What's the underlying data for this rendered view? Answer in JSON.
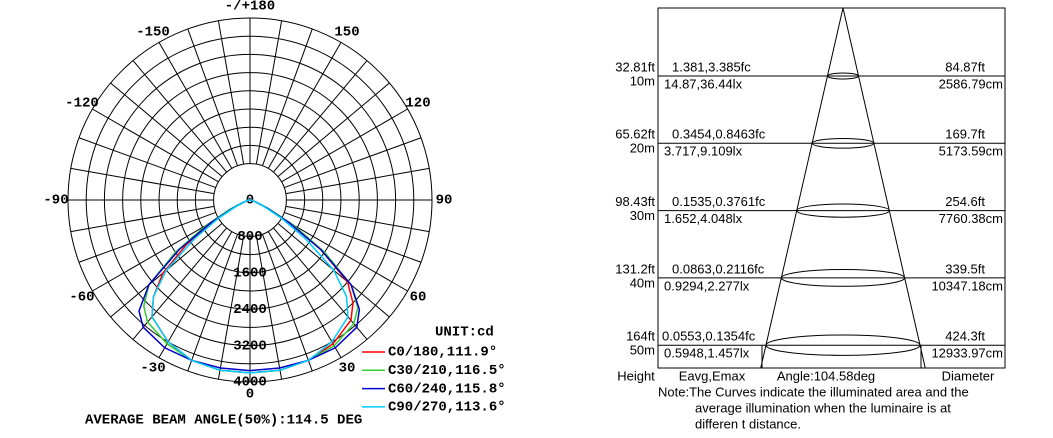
{
  "polar": {
    "angleticks": [
      {
        "value": 180,
        "label": "-/+180"
      },
      150,
      120,
      90,
      60,
      30,
      0,
      -30,
      -60,
      -90,
      -120,
      -150
    ],
    "rlim": [
      0,
      4000
    ],
    "rticks": [
      0,
      800,
      1600,
      2400,
      3200,
      4000
    ],
    "angles": [
      -90,
      -80,
      -70,
      -65,
      -60,
      -55,
      -50,
      -45,
      -40,
      -30,
      -20,
      -10,
      0,
      10,
      20,
      30,
      40,
      45,
      50,
      55,
      60,
      65,
      70,
      80,
      90
    ],
    "series": [
      {
        "name": "C0/180,111.9°",
        "color": "#ff0000",
        "values": [
          0,
          50,
          150,
          400,
          900,
          1700,
          2500,
          3000,
          3350,
          3600,
          3750,
          3800,
          3800,
          3800,
          3750,
          3650,
          3450,
          3200,
          2800,
          1900,
          1000,
          400,
          150,
          50,
          0
        ]
      },
      {
        "name": "C30/210,116.5°",
        "color": "#33cc33",
        "values": [
          0,
          50,
          200,
          500,
          1100,
          2000,
          2900,
          3300,
          3500,
          3650,
          3750,
          3800,
          3800,
          3800,
          3750,
          3700,
          3550,
          3350,
          2900,
          2000,
          1100,
          450,
          150,
          50,
          0
        ]
      },
      {
        "name": "C60/240,115.8°",
        "color": "#0000cc",
        "values": [
          0,
          50,
          150,
          400,
          1000,
          1900,
          2900,
          3450,
          3650,
          3750,
          3750,
          3750,
          3750,
          3750,
          3750,
          3750,
          3650,
          3400,
          2900,
          1900,
          1000,
          400,
          150,
          50,
          0
        ]
      },
      {
        "name": "C90/270,113.6°",
        "color": "#00ccff",
        "values": [
          0,
          50,
          150,
          350,
          800,
          1500,
          2400,
          3000,
          3350,
          3600,
          3750,
          3800,
          3800,
          3800,
          3750,
          3600,
          3350,
          3000,
          2400,
          1500,
          800,
          350,
          150,
          50,
          0
        ]
      }
    ],
    "unit": "UNIT:cd",
    "footer": "AVERAGE BEAM ANGLE(50%):114.5 DEG"
  },
  "cone": {
    "rows": [
      {
        "ft": "32.81ft",
        "m": "10m",
        "fc": "1.381,3.385fc",
        "lx": "14.87,36.44lx",
        "d_ft": "84.87ft",
        "d_cm": "2586.79cm"
      },
      {
        "ft": "65.62ft",
        "m": "20m",
        "fc": "0.3454,0.8463fc",
        "lx": "3.717,9.109lx",
        "d_ft": "169.7ft",
        "d_cm": "5173.59cm"
      },
      {
        "ft": "98.43ft",
        "m": "30m",
        "fc": "0.1535,0.3761fc",
        "lx": "1.652,4.048lx",
        "d_ft": "254.6ft",
        "d_cm": "7760.38cm"
      },
      {
        "ft": "131.2ft",
        "m": "40m",
        "fc": "0.0863,0.2116fc",
        "lx": "0.9294,2.277lx",
        "d_ft": "339.5ft",
        "d_cm": "10347.18cm"
      },
      {
        "ft": "164ft",
        "m": "50m",
        "fc": "0.0553,0.1354fc",
        "lx": "0.5948,1.457lx",
        "d_ft": "424.3ft",
        "d_cm": "12933.97cm"
      }
    ],
    "headers": [
      "Height",
      "Eavg,Emax",
      "Angle:104.58deg",
      "Diameter"
    ],
    "note": [
      "Note:The Curves indicate the illuminated area and the",
      "average illumination when the luminaire is at",
      "differen t distance."
    ]
  }
}
